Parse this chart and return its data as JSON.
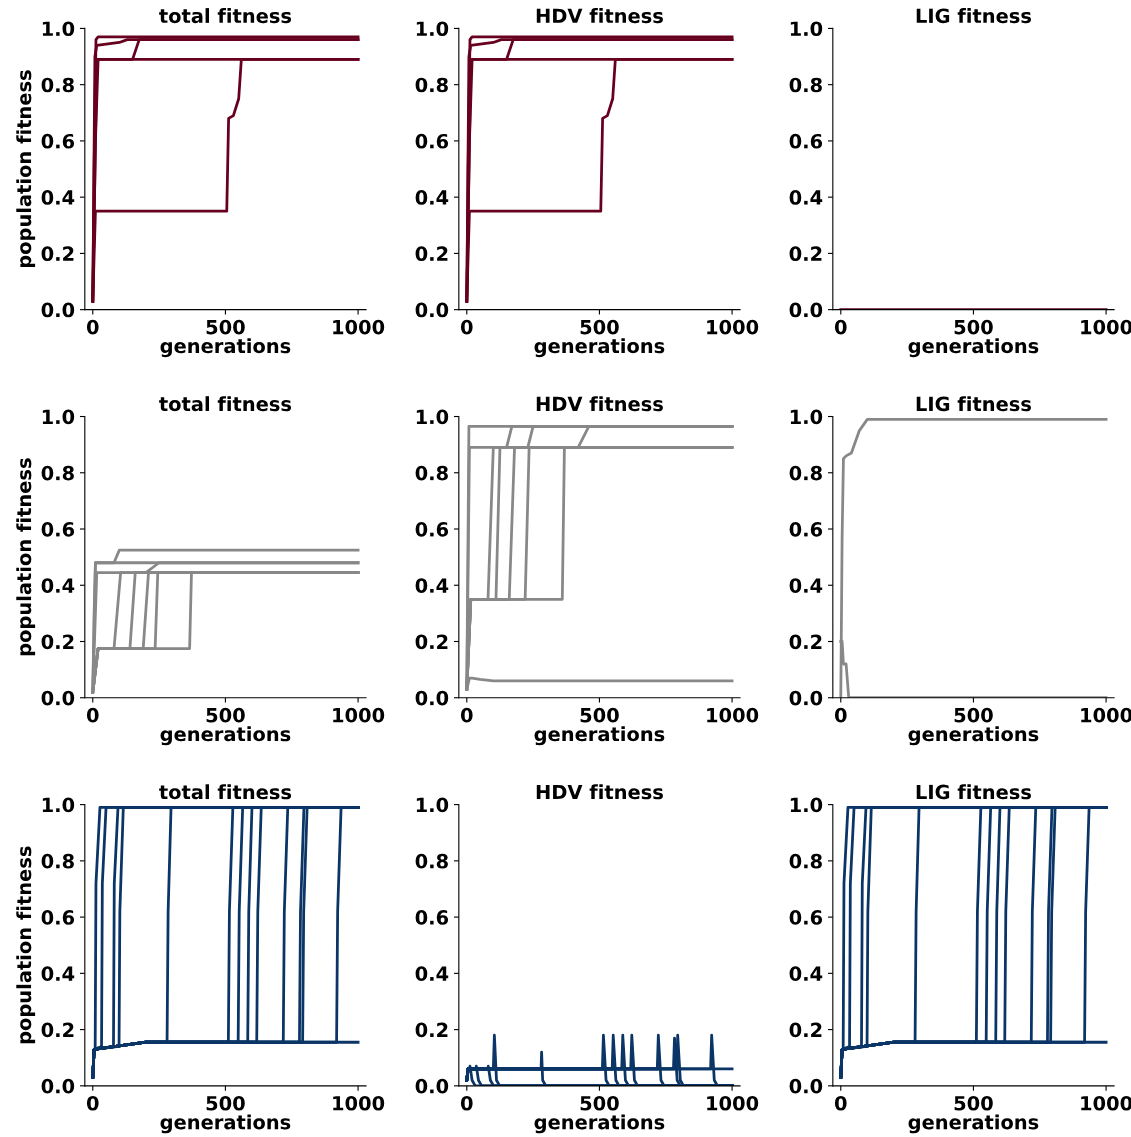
{
  "chart_data": [
    {
      "type": "line",
      "title": "total fitness",
      "xlabel": "generations",
      "ylabel": "population fitness",
      "xlim": [
        -30,
        1030
      ],
      "ylim": [
        0,
        1
      ],
      "xticks": [
        0,
        500,
        1000
      ],
      "yticks": [
        {
          "value": 0,
          "label": "0.0"
        },
        {
          "value": 0.2,
          "label": "0.2"
        },
        {
          "value": 0.4,
          "label": "0.4"
        },
        {
          "value": 0.6,
          "label": "0.6"
        },
        {
          "value": 0.8,
          "label": "0.8"
        },
        {
          "value": 1,
          "label": "1.0"
        }
      ],
      "grid": false,
      "series": [
        {
          "color": "#67001f",
          "x": [
            0,
            5,
            12,
            20,
            1000
          ],
          "values": [
            0.03,
            0.5,
            0.96,
            0.97,
            0.97
          ]
        },
        {
          "color": "#67001f",
          "x": [
            0,
            10,
            20,
            150,
            175,
            1000
          ],
          "values": [
            0.03,
            0.6,
            0.89,
            0.89,
            0.96,
            0.96
          ]
        },
        {
          "color": "#67001f",
          "x": [
            0,
            15,
            25,
            1000
          ],
          "values": [
            0.03,
            0.89,
            0.89,
            0.89
          ]
        },
        {
          "color": "#67001f",
          "x": [
            0,
            8,
            15,
            100,
            130,
            1000
          ],
          "values": [
            0.03,
            0.9,
            0.94,
            0.95,
            0.96,
            0.96
          ]
        },
        {
          "color": "#67001f",
          "x": [
            0,
            10,
            20,
            505,
            512,
            530,
            550,
            560,
            1000
          ],
          "values": [
            0.03,
            0.35,
            0.35,
            0.35,
            0.68,
            0.69,
            0.75,
            0.89,
            0.89
          ]
        }
      ]
    },
    {
      "type": "line",
      "title": "HDV fitness",
      "xlabel": "generations",
      "xlim": [
        -30,
        1030
      ],
      "ylim": [
        0,
        1
      ],
      "xticks": [
        0,
        500,
        1000
      ],
      "yticks": [
        {
          "value": 0,
          "label": "0.0"
        },
        {
          "value": 0.2,
          "label": "0.2"
        },
        {
          "value": 0.4,
          "label": "0.4"
        },
        {
          "value": 0.6,
          "label": "0.6"
        },
        {
          "value": 0.8,
          "label": "0.8"
        },
        {
          "value": 1,
          "label": "1.0"
        }
      ],
      "grid": false,
      "series": [
        {
          "color": "#67001f",
          "x": [
            0,
            5,
            12,
            20,
            1000
          ],
          "values": [
            0.03,
            0.5,
            0.96,
            0.97,
            0.97
          ]
        },
        {
          "color": "#67001f",
          "x": [
            0,
            10,
            20,
            150,
            175,
            1000
          ],
          "values": [
            0.03,
            0.6,
            0.89,
            0.89,
            0.96,
            0.96
          ]
        },
        {
          "color": "#67001f",
          "x": [
            0,
            15,
            25,
            1000
          ],
          "values": [
            0.03,
            0.89,
            0.89,
            0.89
          ]
        },
        {
          "color": "#67001f",
          "x": [
            0,
            8,
            15,
            100,
            130,
            1000
          ],
          "values": [
            0.03,
            0.9,
            0.94,
            0.95,
            0.96,
            0.96
          ]
        },
        {
          "color": "#67001f",
          "x": [
            0,
            10,
            20,
            505,
            512,
            530,
            550,
            560,
            1000
          ],
          "values": [
            0.03,
            0.35,
            0.35,
            0.35,
            0.68,
            0.69,
            0.75,
            0.89,
            0.89
          ]
        }
      ]
    },
    {
      "type": "line",
      "title": "LIG fitness",
      "xlabel": "generations",
      "xlim": [
        -30,
        1030
      ],
      "ylim": [
        0,
        1
      ],
      "xticks": [
        0,
        500,
        1000
      ],
      "yticks": [
        {
          "value": 0,
          "label": "0.0"
        },
        {
          "value": 0.2,
          "label": "0.2"
        },
        {
          "value": 0.4,
          "label": "0.4"
        },
        {
          "value": 0.6,
          "label": "0.6"
        },
        {
          "value": 0.8,
          "label": "0.8"
        },
        {
          "value": 1,
          "label": "1.0"
        }
      ],
      "grid": false,
      "series": [
        {
          "color": "#67001f",
          "x": [
            0,
            1000
          ],
          "values": [
            0,
            0
          ]
        }
      ]
    },
    {
      "type": "line",
      "title": "total fitness",
      "xlabel": "generations",
      "ylabel": "population fitness",
      "xlim": [
        -30,
        1030
      ],
      "ylim": [
        0,
        1
      ],
      "xticks": [
        0,
        500,
        1000
      ],
      "yticks": [
        {
          "value": 0,
          "label": "0.0"
        },
        {
          "value": 0.2,
          "label": "0.2"
        },
        {
          "value": 0.4,
          "label": "0.4"
        },
        {
          "value": 0.6,
          "label": "0.6"
        },
        {
          "value": 0.8,
          "label": "0.8"
        },
        {
          "value": 1,
          "label": "1.0"
        }
      ],
      "grid": false,
      "series": [
        {
          "color": "#888888",
          "x": [
            0,
            5,
            10,
            80,
            100,
            1000
          ],
          "values": [
            0.02,
            0.3,
            0.48,
            0.48,
            0.525,
            0.525
          ]
        },
        {
          "color": "#888888",
          "x": [
            0,
            10,
            1000
          ],
          "values": [
            0.02,
            0.48,
            0.48
          ]
        },
        {
          "color": "#888888",
          "x": [
            0,
            15,
            1000
          ],
          "values": [
            0.02,
            0.445,
            0.445
          ]
        },
        {
          "color": "#888888",
          "x": [
            0,
            20,
            80,
            105,
            200,
            250,
            1000
          ],
          "values": [
            0.02,
            0.175,
            0.175,
            0.445,
            0.445,
            0.48,
            0.48
          ]
        },
        {
          "color": "#888888",
          "x": [
            0,
            20,
            140,
            160,
            1000
          ],
          "values": [
            0.02,
            0.175,
            0.175,
            0.445,
            0.445
          ]
        },
        {
          "color": "#888888",
          "x": [
            0,
            20,
            190,
            210,
            1000
          ],
          "values": [
            0.02,
            0.175,
            0.175,
            0.445,
            0.445
          ]
        },
        {
          "color": "#888888",
          "x": [
            0,
            20,
            235,
            245,
            1000
          ],
          "values": [
            0.02,
            0.175,
            0.175,
            0.445,
            0.445
          ]
        },
        {
          "color": "#888888",
          "x": [
            0,
            20,
            365,
            372,
            1000
          ],
          "values": [
            0.02,
            0.175,
            0.175,
            0.445,
            0.445
          ]
        }
      ]
    },
    {
      "type": "line",
      "title": "HDV fitness",
      "xlabel": "generations",
      "xlim": [
        -30,
        1030
      ],
      "ylim": [
        0,
        1
      ],
      "xticks": [
        0,
        500,
        1000
      ],
      "yticks": [
        {
          "value": 0,
          "label": "0.0"
        },
        {
          "value": 0.2,
          "label": "0.2"
        },
        {
          "value": 0.4,
          "label": "0.4"
        },
        {
          "value": 0.6,
          "label": "0.6"
        },
        {
          "value": 0.8,
          "label": "0.8"
        },
        {
          "value": 1,
          "label": "1.0"
        }
      ],
      "grid": false,
      "series": [
        {
          "color": "#888888",
          "x": [
            0,
            8,
            1000
          ],
          "values": [
            0.03,
            0.965,
            0.965
          ]
        },
        {
          "color": "#888888",
          "x": [
            0,
            10,
            1000
          ],
          "values": [
            0.03,
            0.89,
            0.89
          ]
        },
        {
          "color": "#888888",
          "x": [
            0,
            15,
            80,
            100,
            150,
            170,
            1000
          ],
          "values": [
            0.03,
            0.35,
            0.35,
            0.89,
            0.89,
            0.965,
            0.965
          ]
        },
        {
          "color": "#888888",
          "x": [
            0,
            15,
            110,
            125,
            1000
          ],
          "values": [
            0.03,
            0.35,
            0.35,
            0.89,
            0.89
          ]
        },
        {
          "color": "#888888",
          "x": [
            0,
            15,
            160,
            180,
            230,
            250,
            1000
          ],
          "values": [
            0.03,
            0.35,
            0.35,
            0.89,
            0.89,
            0.965,
            0.965
          ]
        },
        {
          "color": "#888888",
          "x": [
            0,
            15,
            220,
            235,
            1000
          ],
          "values": [
            0.03,
            0.35,
            0.35,
            0.89,
            0.89
          ]
        },
        {
          "color": "#888888",
          "x": [
            0,
            15,
            360,
            368,
            420,
            460,
            1000
          ],
          "values": [
            0.03,
            0.35,
            0.35,
            0.89,
            0.89,
            0.965,
            0.965
          ]
        },
        {
          "color": "#888888",
          "x": [
            0,
            10,
            20,
            50,
            100,
            1000
          ],
          "values": [
            0.03,
            0.07,
            0.07,
            0.065,
            0.06,
            0.06
          ]
        }
      ]
    },
    {
      "type": "line",
      "title": "LIG fitness",
      "xlabel": "generations",
      "xlim": [
        -30,
        1030
      ],
      "ylim": [
        0,
        1
      ],
      "xticks": [
        0,
        500,
        1000
      ],
      "yticks": [
        {
          "value": 0,
          "label": "0.0"
        },
        {
          "value": 0.2,
          "label": "0.2"
        },
        {
          "value": 0.4,
          "label": "0.4"
        },
        {
          "value": 0.6,
          "label": "0.6"
        },
        {
          "value": 0.8,
          "label": "0.8"
        },
        {
          "value": 1,
          "label": "1.0"
        }
      ],
      "grid": false,
      "series": [
        {
          "color": "#888888",
          "x": [
            0,
            5,
            10,
            20,
            40,
            70,
            100,
            1000
          ],
          "values": [
            0,
            0.57,
            0.85,
            0.86,
            0.87,
            0.95,
            0.99,
            0.99
          ]
        },
        {
          "color": "#888888",
          "x": [
            0,
            5,
            10,
            20,
            30,
            40,
            1000
          ],
          "values": [
            0.2,
            0.2,
            0.12,
            0.12,
            0,
            0,
            0
          ]
        }
      ]
    },
    {
      "type": "line",
      "title": "total fitness",
      "xlabel": "generations",
      "ylabel": "population fitness",
      "xlim": [
        -30,
        1030
      ],
      "ylim": [
        0,
        1
      ],
      "xticks": [
        0,
        500,
        1000
      ],
      "yticks": [
        {
          "value": 0,
          "label": "0.0"
        },
        {
          "value": 0.2,
          "label": "0.2"
        },
        {
          "value": 0.4,
          "label": "0.4"
        },
        {
          "value": 0.6,
          "label": "0.6"
        },
        {
          "value": 0.8,
          "label": "0.8"
        },
        {
          "value": 1,
          "label": "1.0"
        }
      ],
      "grid": false,
      "series": [
        {
          "color": "#0b3566",
          "x": [
            0,
            5,
            200,
            1000
          ],
          "values": [
            0.03,
            0.13,
            0.155,
            0.155
          ]
        },
        {
          "color": "#0b3566",
          "x": [
            0,
            5,
            9,
            12,
            27,
            1000
          ],
          "values": [
            0.03,
            0.13,
            0.13,
            0.72,
            0.99,
            0.99
          ]
        },
        {
          "color": "#0b3566",
          "x": [
            0,
            5,
            33,
            36,
            50,
            1000
          ],
          "values": [
            0.03,
            0.13,
            0.14,
            0.72,
            0.99,
            0.99
          ]
        },
        {
          "color": "#0b3566",
          "x": [
            0,
            5,
            78,
            81,
            95,
            1000
          ],
          "values": [
            0.03,
            0.13,
            0.14,
            0.72,
            0.99,
            0.99
          ]
        },
        {
          "color": "#0b3566",
          "x": [
            0,
            5,
            99,
            102,
            115,
            1000
          ],
          "values": [
            0.03,
            0.13,
            0.14,
            0.62,
            0.99,
            0.99
          ]
        },
        {
          "color": "#0b3566",
          "x": [
            0,
            5,
            200,
            280,
            284,
            295,
            1000
          ],
          "values": [
            0.03,
            0.13,
            0.155,
            0.155,
            0.62,
            0.99,
            0.99
          ]
        },
        {
          "color": "#0b3566",
          "x": [
            0,
            5,
            200,
            511,
            515,
            528,
            1000
          ],
          "values": [
            0.03,
            0.13,
            0.155,
            0.155,
            0.62,
            0.99,
            0.99
          ]
        },
        {
          "color": "#0b3566",
          "x": [
            0,
            5,
            200,
            548,
            552,
            565,
            1000
          ],
          "values": [
            0.03,
            0.13,
            0.155,
            0.155,
            0.62,
            0.99,
            0.99
          ]
        },
        {
          "color": "#0b3566",
          "x": [
            0,
            5,
            200,
            584,
            588,
            600,
            1000
          ],
          "values": [
            0.03,
            0.13,
            0.155,
            0.155,
            0.62,
            0.99,
            0.99
          ]
        },
        {
          "color": "#0b3566",
          "x": [
            0,
            5,
            200,
            618,
            622,
            635,
            1000
          ],
          "values": [
            0.03,
            0.13,
            0.155,
            0.155,
            0.62,
            0.99,
            0.99
          ]
        },
        {
          "color": "#0b3566",
          "x": [
            0,
            5,
            200,
            718,
            722,
            735,
            1000
          ],
          "values": [
            0.03,
            0.13,
            0.155,
            0.155,
            0.62,
            0.99,
            0.99
          ]
        },
        {
          "color": "#0b3566",
          "x": [
            0,
            5,
            200,
            779,
            783,
            796,
            1000
          ],
          "values": [
            0.03,
            0.13,
            0.155,
            0.155,
            0.62,
            0.99,
            0.99
          ]
        },
        {
          "color": "#0b3566",
          "x": [
            0,
            5,
            200,
            791,
            795,
            808,
            1000
          ],
          "values": [
            0.03,
            0.13,
            0.155,
            0.155,
            0.62,
            0.99,
            0.99
          ]
        },
        {
          "color": "#0b3566",
          "x": [
            0,
            5,
            200,
            919,
            923,
            936,
            1000
          ],
          "values": [
            0.03,
            0.13,
            0.155,
            0.155,
            0.62,
            0.99,
            0.99
          ]
        }
      ]
    },
    {
      "type": "line",
      "title": "HDV fitness",
      "xlabel": "generations",
      "xlim": [
        -30,
        1030
      ],
      "ylim": [
        0,
        1
      ],
      "xticks": [
        0,
        500,
        1000
      ],
      "yticks": [
        {
          "value": 0,
          "label": "0.0"
        },
        {
          "value": 0.2,
          "label": "0.2"
        },
        {
          "value": 0.4,
          "label": "0.4"
        },
        {
          "value": 0.6,
          "label": "0.6"
        },
        {
          "value": 0.8,
          "label": "0.8"
        },
        {
          "value": 1,
          "label": "1.0"
        }
      ],
      "grid": false,
      "series": [
        {
          "color": "#0b3566",
          "x": [
            0,
            5,
            50,
            1000
          ],
          "values": [
            0.02,
            0.06,
            0.06,
            0.06
          ]
        },
        {
          "color": "#0b3566",
          "x": [
            0,
            5,
            10,
            12,
            20,
            32,
            1000
          ],
          "values": [
            0.02,
            0.06,
            0.06,
            0.07,
            0.02,
            0,
            0
          ]
        },
        {
          "color": "#0b3566",
          "x": [
            0,
            5,
            34,
            36,
            44,
            56,
            1000
          ],
          "values": [
            0.02,
            0.06,
            0.06,
            0.07,
            0.02,
            0,
            0
          ]
        },
        {
          "color": "#0b3566",
          "x": [
            0,
            5,
            79,
            81,
            89,
            101,
            1000
          ],
          "values": [
            0.02,
            0.06,
            0.06,
            0.07,
            0.02,
            0,
            0
          ]
        },
        {
          "color": "#0b3566",
          "x": [
            0,
            5,
            100,
            104,
            112,
            124,
            1000
          ],
          "values": [
            0.02,
            0.06,
            0.06,
            0.18,
            0.02,
            0,
            0
          ]
        },
        {
          "color": "#0b3566",
          "x": [
            0,
            5,
            280,
            282,
            286,
            298,
            1000
          ],
          "values": [
            0.02,
            0.06,
            0.06,
            0.12,
            0.02,
            0,
            0
          ]
        },
        {
          "color": "#0b3566",
          "x": [
            0,
            5,
            511,
            515,
            525,
            537,
            1000
          ],
          "values": [
            0.02,
            0.06,
            0.06,
            0.18,
            0.02,
            0,
            0
          ]
        },
        {
          "color": "#0b3566",
          "x": [
            0,
            5,
            548,
            552,
            562,
            574,
            1000
          ],
          "values": [
            0.02,
            0.06,
            0.06,
            0.18,
            0.02,
            0,
            0
          ]
        },
        {
          "color": "#0b3566",
          "x": [
            0,
            5,
            584,
            588,
            598,
            610,
            1000
          ],
          "values": [
            0.02,
            0.06,
            0.06,
            0.18,
            0.02,
            0,
            0
          ]
        },
        {
          "color": "#0b3566",
          "x": [
            0,
            5,
            618,
            622,
            632,
            644,
            1000
          ],
          "values": [
            0.02,
            0.06,
            0.06,
            0.18,
            0.02,
            0,
            0
          ]
        },
        {
          "color": "#0b3566",
          "x": [
            0,
            5,
            718,
            722,
            732,
            744,
            1000
          ],
          "values": [
            0.02,
            0.06,
            0.06,
            0.18,
            0.02,
            0,
            0
          ]
        },
        {
          "color": "#0b3566",
          "x": [
            0,
            5,
            779,
            783,
            793,
            805,
            1000
          ],
          "values": [
            0.02,
            0.06,
            0.06,
            0.17,
            0.02,
            0,
            0
          ]
        },
        {
          "color": "#0b3566",
          "x": [
            0,
            5,
            791,
            795,
            805,
            817,
            1000
          ],
          "values": [
            0.02,
            0.06,
            0.06,
            0.18,
            0.02,
            0,
            0
          ]
        },
        {
          "color": "#0b3566",
          "x": [
            0,
            5,
            919,
            923,
            933,
            945,
            1000
          ],
          "values": [
            0.02,
            0.06,
            0.06,
            0.18,
            0.02,
            0,
            0
          ]
        }
      ]
    },
    {
      "type": "line",
      "title": "LIG fitness",
      "xlabel": "generations",
      "xlim": [
        -30,
        1030
      ],
      "ylim": [
        0,
        1
      ],
      "xticks": [
        0,
        500,
        1000
      ],
      "yticks": [
        {
          "value": 0,
          "label": "0.0"
        },
        {
          "value": 0.2,
          "label": "0.2"
        },
        {
          "value": 0.4,
          "label": "0.4"
        },
        {
          "value": 0.6,
          "label": "0.6"
        },
        {
          "value": 0.8,
          "label": "0.8"
        },
        {
          "value": 1,
          "label": "1.0"
        }
      ],
      "grid": false,
      "series": [
        {
          "color": "#0b3566",
          "x": [
            0,
            5,
            200,
            1000
          ],
          "values": [
            0.03,
            0.13,
            0.155,
            0.155
          ]
        },
        {
          "color": "#0b3566",
          "x": [
            0,
            5,
            9,
            12,
            27,
            1000
          ],
          "values": [
            0.03,
            0.13,
            0.13,
            0.72,
            0.99,
            0.99
          ]
        },
        {
          "color": "#0b3566",
          "x": [
            0,
            5,
            33,
            36,
            50,
            1000
          ],
          "values": [
            0.03,
            0.13,
            0.14,
            0.72,
            0.99,
            0.99
          ]
        },
        {
          "color": "#0b3566",
          "x": [
            0,
            5,
            78,
            81,
            95,
            1000
          ],
          "values": [
            0.03,
            0.13,
            0.14,
            0.72,
            0.99,
            0.99
          ]
        },
        {
          "color": "#0b3566",
          "x": [
            0,
            5,
            99,
            102,
            115,
            1000
          ],
          "values": [
            0.03,
            0.13,
            0.14,
            0.62,
            0.99,
            0.99
          ]
        },
        {
          "color": "#0b3566",
          "x": [
            0,
            5,
            200,
            280,
            284,
            295,
            1000
          ],
          "values": [
            0.03,
            0.13,
            0.155,
            0.155,
            0.62,
            0.99,
            0.99
          ]
        },
        {
          "color": "#0b3566",
          "x": [
            0,
            5,
            200,
            511,
            515,
            528,
            1000
          ],
          "values": [
            0.03,
            0.13,
            0.155,
            0.155,
            0.62,
            0.99,
            0.99
          ]
        },
        {
          "color": "#0b3566",
          "x": [
            0,
            5,
            200,
            548,
            552,
            565,
            1000
          ],
          "values": [
            0.03,
            0.13,
            0.155,
            0.155,
            0.62,
            0.99,
            0.99
          ]
        },
        {
          "color": "#0b3566",
          "x": [
            0,
            5,
            200,
            584,
            588,
            600,
            1000
          ],
          "values": [
            0.03,
            0.13,
            0.155,
            0.155,
            0.62,
            0.99,
            0.99
          ]
        },
        {
          "color": "#0b3566",
          "x": [
            0,
            5,
            200,
            618,
            622,
            635,
            1000
          ],
          "values": [
            0.03,
            0.13,
            0.155,
            0.155,
            0.62,
            0.99,
            0.99
          ]
        },
        {
          "color": "#0b3566",
          "x": [
            0,
            5,
            200,
            718,
            722,
            735,
            1000
          ],
          "values": [
            0.03,
            0.13,
            0.155,
            0.155,
            0.62,
            0.99,
            0.99
          ]
        },
        {
          "color": "#0b3566",
          "x": [
            0,
            5,
            200,
            779,
            783,
            796,
            1000
          ],
          "values": [
            0.03,
            0.13,
            0.155,
            0.155,
            0.62,
            0.99,
            0.99
          ]
        },
        {
          "color": "#0b3566",
          "x": [
            0,
            5,
            200,
            791,
            795,
            808,
            1000
          ],
          "values": [
            0.03,
            0.13,
            0.155,
            0.155,
            0.62,
            0.99,
            0.99
          ]
        },
        {
          "color": "#0b3566",
          "x": [
            0,
            5,
            200,
            919,
            923,
            936,
            1000
          ],
          "values": [
            0.03,
            0.13,
            0.155,
            0.155,
            0.62,
            0.99,
            0.99
          ]
        }
      ]
    }
  ]
}
